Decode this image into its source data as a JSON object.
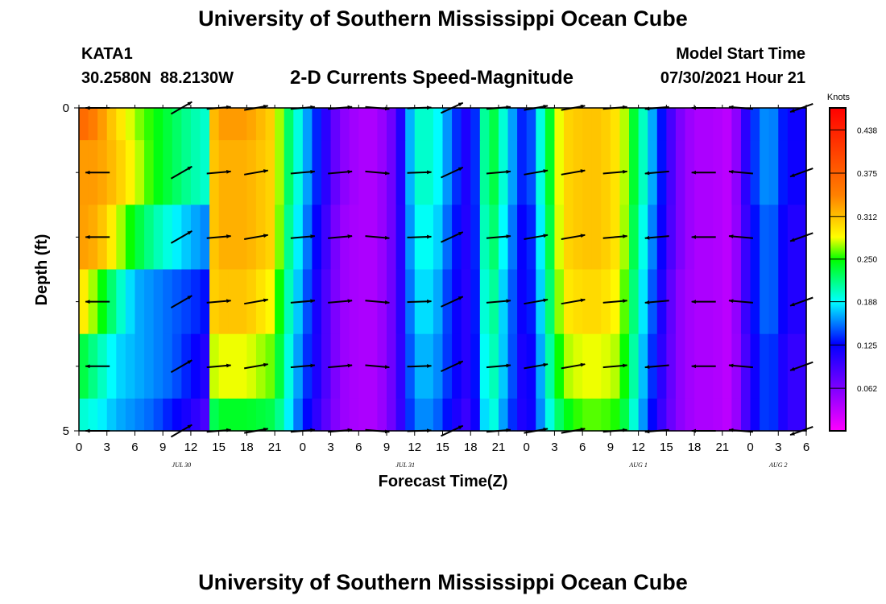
{
  "header": {
    "title": "University of Southern Mississippi Ocean Cube",
    "station_id": "KATA1",
    "station_coords": "30.2580N  88.2130W",
    "plot_title": "2-D Currents Speed-Magnitude",
    "model_start_label": "Model Start Time",
    "model_start_value": "07/30/2021 Hour 21"
  },
  "footer": {
    "title": "University of Southern Mississippi Ocean Cube"
  },
  "chart_data": {
    "type": "heatmap",
    "title": "2-D Currents Speed-Magnitude",
    "xlabel": "Forecast Time(Z)",
    "ylabel": "Depth (ft)",
    "x_start_hour": 0,
    "x_end_hour": 78,
    "x_ticks": [
      {
        "hour": 0,
        "label": "0"
      },
      {
        "hour": 3,
        "label": "3"
      },
      {
        "hour": 6,
        "label": "6"
      },
      {
        "hour": 9,
        "label": "9"
      },
      {
        "hour": 12,
        "label": "12"
      },
      {
        "hour": 15,
        "label": "15"
      },
      {
        "hour": 18,
        "label": "18"
      },
      {
        "hour": 21,
        "label": "21"
      },
      {
        "hour": 24,
        "label": "0"
      },
      {
        "hour": 27,
        "label": "3"
      },
      {
        "hour": 30,
        "label": "6"
      },
      {
        "hour": 33,
        "label": "9"
      },
      {
        "hour": 36,
        "label": "12"
      },
      {
        "hour": 39,
        "label": "15"
      },
      {
        "hour": 42,
        "label": "18"
      },
      {
        "hour": 45,
        "label": "21"
      },
      {
        "hour": 48,
        "label": "0"
      },
      {
        "hour": 51,
        "label": "3"
      },
      {
        "hour": 54,
        "label": "6"
      },
      {
        "hour": 57,
        "label": "9"
      },
      {
        "hour": 60,
        "label": "12"
      },
      {
        "hour": 63,
        "label": "15"
      },
      {
        "hour": 66,
        "label": "18"
      },
      {
        "hour": 69,
        "label": "21"
      },
      {
        "hour": 72,
        "label": "0"
      },
      {
        "hour": 75,
        "label": "3"
      },
      {
        "hour": 78,
        "label": "6"
      }
    ],
    "date_labels": [
      {
        "hour": 11,
        "label": "JUL 30"
      },
      {
        "hour": 35,
        "label": "JUL 31"
      },
      {
        "hour": 60,
        "label": "AUG 1"
      },
      {
        "hour": 75,
        "label": "AUG 2"
      }
    ],
    "y_range": [
      0,
      5
    ],
    "y_tick_labels": [
      {
        "depth": 0,
        "label": "0"
      },
      {
        "depth": 5,
        "label": "5"
      }
    ],
    "y_minor_ticks": [
      1,
      2,
      3,
      4
    ],
    "depth_levels": [
      0,
      1,
      2,
      3,
      4,
      5
    ],
    "speed_unit": "Knots",
    "color_range": [
      0,
      0.47
    ],
    "colorbar_ticks": [
      "0.438",
      "0.375",
      "0.312",
      "0.250",
      "0.188",
      "0.125",
      "0.062"
    ],
    "colorbar_tick_values": [
      0.438,
      0.375,
      0.312,
      0.25,
      0.188,
      0.125,
      0.062
    ],
    "arrow_hours": [
      2,
      11,
      15,
      19,
      24,
      28,
      32,
      36.5,
      40,
      45,
      49,
      53,
      57.5,
      62,
      67,
      71,
      77.5
    ],
    "arrow_angles": [
      180,
      -30,
      -5,
      -10,
      -5,
      -5,
      5,
      -2,
      -25,
      -5,
      -10,
      -10,
      -5,
      175,
      180,
      185,
      160
    ],
    "hourly_speed": {
      "hours": [
        0,
        2,
        4,
        6,
        8,
        10,
        12,
        13.5,
        14,
        15,
        16,
        18,
        21,
        22,
        24,
        26,
        28,
        30,
        32,
        34,
        36,
        38,
        40,
        42,
        44,
        46,
        48,
        50,
        52,
        54,
        56,
        58,
        60,
        62,
        64,
        66,
        68,
        70,
        72,
        74,
        76,
        78
      ],
      "depth_0": [
        0.37,
        0.34,
        0.3,
        0.27,
        0.25,
        0.23,
        0.21,
        0.2,
        0.3,
        0.33,
        0.33,
        0.33,
        0.3,
        0.24,
        0.18,
        0.12,
        0.06,
        0.04,
        0.04,
        0.08,
        0.2,
        0.2,
        0.15,
        0.1,
        0.25,
        0.18,
        0.12,
        0.22,
        0.3,
        0.31,
        0.31,
        0.29,
        0.22,
        0.15,
        0.07,
        0.04,
        0.04,
        0.03,
        0.13,
        0.17,
        0.12,
        0.12
      ],
      "depth_1": [
        0.33,
        0.33,
        0.31,
        0.28,
        0.25,
        0.23,
        0.21,
        0.2,
        0.3,
        0.32,
        0.32,
        0.32,
        0.3,
        0.24,
        0.18,
        0.12,
        0.06,
        0.04,
        0.04,
        0.08,
        0.2,
        0.2,
        0.15,
        0.1,
        0.25,
        0.18,
        0.12,
        0.22,
        0.3,
        0.31,
        0.31,
        0.29,
        0.22,
        0.15,
        0.07,
        0.04,
        0.04,
        0.03,
        0.13,
        0.17,
        0.12,
        0.12
      ],
      "depth_2": [
        0.33,
        0.32,
        0.28,
        0.24,
        0.21,
        0.19,
        0.17,
        0.16,
        0.3,
        0.32,
        0.32,
        0.32,
        0.3,
        0.23,
        0.17,
        0.11,
        0.05,
        0.04,
        0.04,
        0.08,
        0.19,
        0.19,
        0.14,
        0.1,
        0.24,
        0.17,
        0.11,
        0.21,
        0.3,
        0.31,
        0.31,
        0.29,
        0.21,
        0.14,
        0.07,
        0.04,
        0.04,
        0.03,
        0.12,
        0.16,
        0.11,
        0.11
      ],
      "depth_3": [
        0.3,
        0.26,
        0.21,
        0.17,
        0.16,
        0.15,
        0.14,
        0.13,
        0.3,
        0.31,
        0.31,
        0.31,
        0.28,
        0.22,
        0.16,
        0.1,
        0.05,
        0.04,
        0.04,
        0.08,
        0.18,
        0.18,
        0.13,
        0.1,
        0.23,
        0.16,
        0.11,
        0.2,
        0.29,
        0.3,
        0.3,
        0.28,
        0.2,
        0.13,
        0.06,
        0.04,
        0.04,
        0.03,
        0.12,
        0.16,
        0.11,
        0.11
      ],
      "depth_4": [
        0.24,
        0.21,
        0.18,
        0.17,
        0.16,
        0.15,
        0.13,
        0.11,
        0.27,
        0.28,
        0.28,
        0.28,
        0.26,
        0.21,
        0.15,
        0.1,
        0.05,
        0.04,
        0.04,
        0.08,
        0.17,
        0.17,
        0.13,
        0.1,
        0.22,
        0.16,
        0.1,
        0.19,
        0.27,
        0.28,
        0.28,
        0.27,
        0.19,
        0.12,
        0.06,
        0.04,
        0.04,
        0.03,
        0.11,
        0.15,
        0.1,
        0.1
      ],
      "depth_5": [
        0.2,
        0.19,
        0.17,
        0.16,
        0.15,
        0.13,
        0.11,
        0.09,
        0.22,
        0.24,
        0.24,
        0.24,
        0.23,
        0.2,
        0.14,
        0.09,
        0.05,
        0.04,
        0.04,
        0.08,
        0.16,
        0.16,
        0.12,
        0.09,
        0.21,
        0.15,
        0.1,
        0.18,
        0.24,
        0.26,
        0.26,
        0.25,
        0.18,
        0.11,
        0.06,
        0.04,
        0.04,
        0.03,
        0.11,
        0.15,
        0.1,
        0.1
      ]
    }
  }
}
